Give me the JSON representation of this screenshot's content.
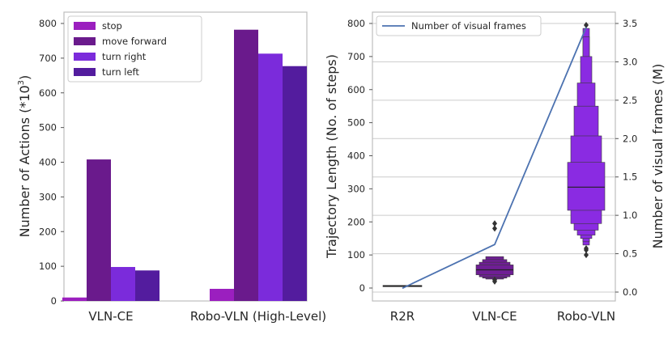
{
  "chart_data": [
    {
      "type": "bar",
      "title": "",
      "ylabel": "Number of Actions (*10",
      "ylabel_superscript": "3",
      "ylabel_close": ")",
      "categories": [
        "VLN-CE",
        "Robo-VLN (High-Level)"
      ],
      "ylim": [
        0,
        800
      ],
      "yticks": [
        0,
        100,
        200,
        300,
        400,
        500,
        600,
        700,
        800
      ],
      "legend_position": "top-left",
      "series": [
        {
          "name": "stop",
          "color": "#9b1fbf",
          "values": [
            10,
            35
          ]
        },
        {
          "name": "move forward",
          "color": "#6a1a8c",
          "values": [
            408,
            782
          ]
        },
        {
          "name": "turn right",
          "color": "#7b2bdb",
          "values": [
            98,
            713
          ]
        },
        {
          "name": "turn left",
          "color": "#531c9e",
          "values": [
            88,
            677
          ]
        }
      ]
    },
    {
      "type": "boxen",
      "ylabel": "Trajectory Length (No. of steps)",
      "categories": [
        "R2R",
        "VLN-CE",
        "Robo-VLN"
      ],
      "ylim": [
        0,
        800
      ],
      "yticks": [
        0,
        100,
        200,
        300,
        400,
        500,
        600,
        700,
        800
      ],
      "colors": [
        "#3a1f63",
        "#6f1e95",
        "#8a2be2"
      ],
      "boxes": [
        {
          "category": "R2R",
          "median": 6,
          "levels": [
            [
              4,
              8
            ]
          ],
          "outliers": []
        },
        {
          "category": "VLN-CE",
          "median": 55,
          "levels": [
            [
              40,
              70
            ],
            [
              34,
              78
            ],
            [
              30,
              86
            ],
            [
              27,
              95
            ]
          ],
          "outliers": [
            20,
            25,
            180,
            195
          ]
        },
        {
          "category": "Robo-VLN",
          "median": 305,
          "levels": [
            [
              235,
              380
            ],
            [
              195,
              460
            ],
            [
              175,
              550
            ],
            [
              160,
              620
            ],
            [
              150,
              700
            ],
            [
              140,
              760
            ],
            [
              130,
              785
            ]
          ],
          "outliers": [
            100,
            115,
            120,
            795
          ]
        }
      ],
      "line": {
        "name": "Number of visual frames",
        "color": "#4c72b0",
        "ylabel": "Number of visual frames (M)",
        "ylim": [
          0,
          3.5
        ],
        "yticks": [
          "0.0",
          "0.5",
          "1.0",
          "1.5",
          "2.0",
          "2.5",
          "3.0",
          "3.5"
        ],
        "values": [
          0.05,
          0.62,
          3.45
        ]
      },
      "legend_position": "top-left"
    }
  ]
}
